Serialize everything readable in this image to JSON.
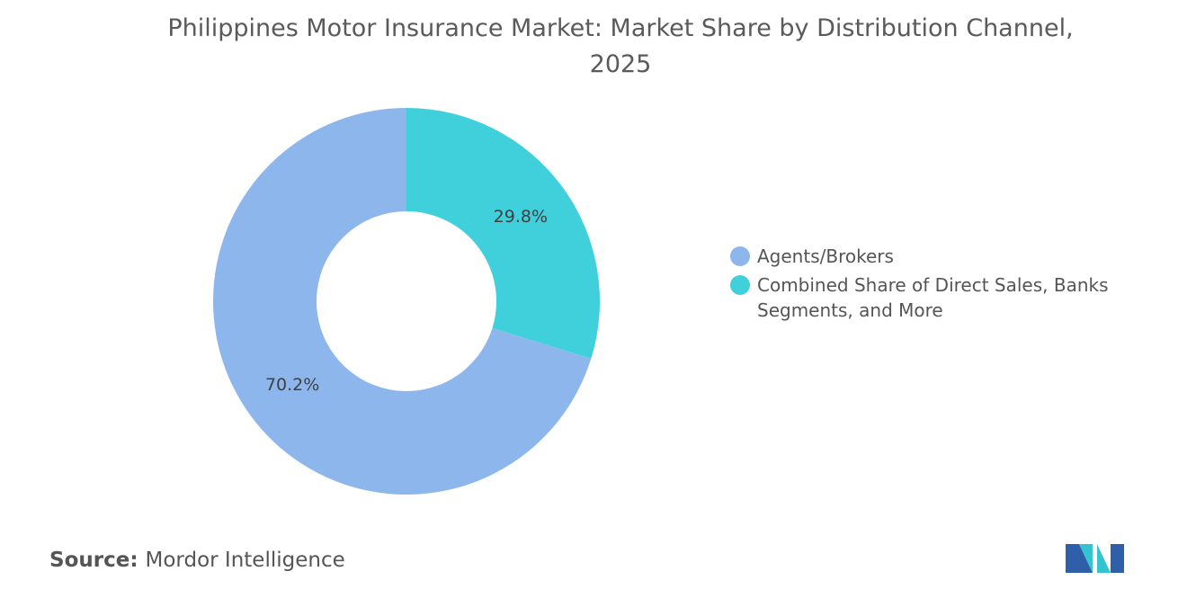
{
  "chart_data": {
    "type": "donut",
    "title": "Philippines Motor Insurance Market: Market Share by Distribution Channel, 2025",
    "categories": [
      "Agents/Brokers",
      "Combined Share of Direct Sales, Banks Segments, and More"
    ],
    "values": [
      70.2,
      29.8
    ],
    "value_labels": [
      "70.2%",
      "29.8%"
    ],
    "colors": [
      "#8db7ec",
      "#40d0db"
    ],
    "legend": "right",
    "source_label": "Source:",
    "source": "Mordor Intelligence"
  }
}
